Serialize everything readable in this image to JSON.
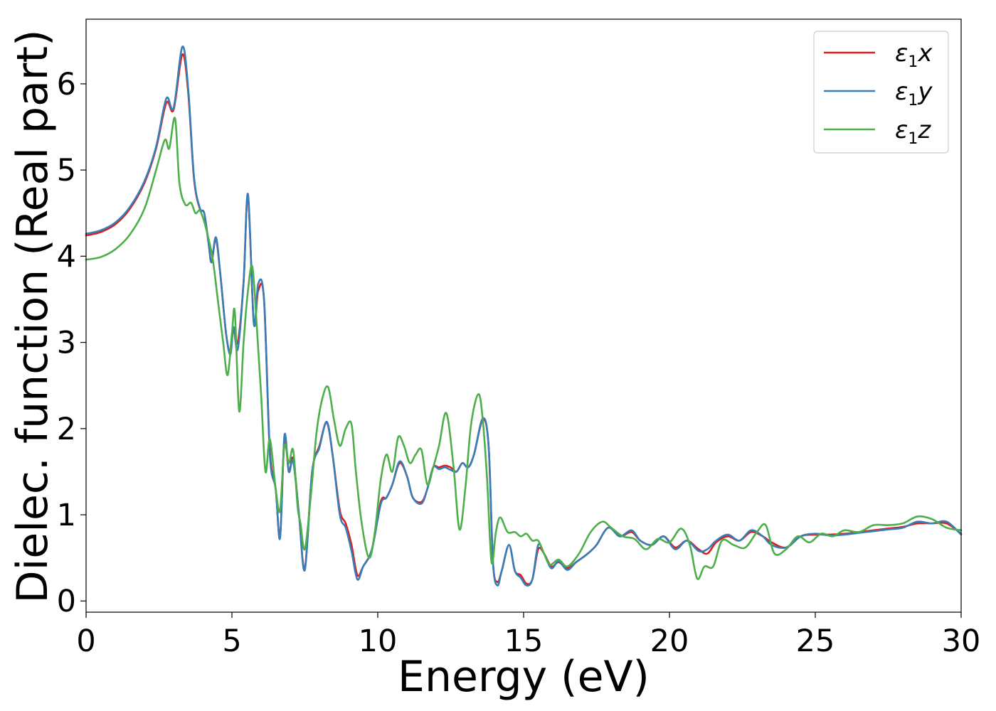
{
  "chart_data": {
    "type": "line",
    "title": "",
    "xlabel": "Energy (eV)",
    "ylabel": "Dielec. function (Real part)",
    "xlim": [
      0,
      30
    ],
    "ylim": [
      -0.13,
      6.75
    ],
    "xticks": [
      0,
      5,
      10,
      15,
      20,
      25,
      30
    ],
    "yticks": [
      0,
      1,
      2,
      3,
      4,
      5,
      6
    ],
    "xtick_labels": [
      "0",
      "5",
      "10",
      "15",
      "20",
      "25",
      "30"
    ],
    "ytick_labels": [
      "0",
      "1",
      "2",
      "3",
      "4",
      "5",
      "6"
    ],
    "grid": false,
    "legend_position": "top-right",
    "series": [
      {
        "name": "ε1x",
        "label_base": "ε",
        "label_sub": "1",
        "label_var": "x",
        "color": "#e41a1c",
        "x": [
          0,
          0.5,
          1,
          1.5,
          2,
          2.4,
          2.75,
          3.0,
          3.3,
          3.5,
          3.7,
          3.9,
          4.05,
          4.2,
          4.3,
          4.45,
          4.6,
          4.8,
          4.95,
          5.05,
          5.2,
          5.4,
          5.55,
          5.75,
          5.9,
          6.1,
          6.3,
          6.5,
          6.65,
          6.8,
          6.95,
          7.1,
          7.3,
          7.5,
          7.75,
          8.0,
          8.25,
          8.45,
          8.7,
          8.9,
          9.1,
          9.3,
          9.5,
          9.8,
          10.1,
          10.3,
          10.5,
          10.75,
          11.0,
          11.2,
          11.5,
          11.7,
          11.9,
          12.1,
          12.3,
          12.5,
          12.7,
          12.9,
          13.1,
          13.3,
          13.6,
          13.8,
          13.95,
          14.1,
          14.25,
          14.5,
          14.7,
          14.9,
          15.1,
          15.3,
          15.5,
          15.7,
          15.95,
          16.2,
          16.5,
          16.8,
          17.2,
          17.5,
          17.9,
          18.3,
          18.7,
          19.0,
          19.4,
          19.8,
          20.2,
          20.6,
          21.0,
          21.3,
          21.6,
          22.0,
          22.4,
          22.8,
          23.2,
          23.5,
          24.0,
          24.5,
          25.0,
          25.5,
          26.0,
          26.5,
          27.0,
          27.5,
          28.0,
          28.5,
          29.0,
          29.5,
          30.0
        ],
        "y": [
          4.24,
          4.28,
          4.37,
          4.55,
          4.85,
          5.25,
          5.78,
          5.7,
          6.34,
          5.9,
          4.9,
          4.55,
          4.5,
          4.15,
          3.93,
          4.2,
          3.8,
          3.1,
          2.88,
          3.16,
          3.0,
          3.7,
          4.7,
          3.23,
          3.6,
          3.5,
          1.75,
          1.3,
          0.75,
          1.88,
          1.5,
          1.65,
          1.0,
          0.38,
          1.5,
          1.8,
          2.07,
          1.7,
          1.05,
          0.9,
          0.65,
          0.3,
          0.4,
          0.6,
          1.15,
          1.2,
          1.35,
          1.6,
          1.45,
          1.2,
          1.15,
          1.3,
          1.55,
          1.55,
          1.57,
          1.55,
          1.5,
          1.6,
          1.55,
          1.7,
          2.1,
          1.8,
          0.45,
          0.22,
          0.35,
          0.65,
          0.35,
          0.3,
          0.2,
          0.25,
          0.6,
          0.55,
          0.4,
          0.45,
          0.38,
          0.45,
          0.55,
          0.65,
          0.85,
          0.75,
          0.8,
          0.7,
          0.65,
          0.75,
          0.62,
          0.7,
          0.6,
          0.55,
          0.68,
          0.75,
          0.7,
          0.8,
          0.75,
          0.68,
          0.62,
          0.75,
          0.77,
          0.77,
          0.78,
          0.8,
          0.82,
          0.84,
          0.86,
          0.9,
          0.9,
          0.9,
          0.78
        ]
      },
      {
        "name": "ε1y",
        "label_base": "ε",
        "label_sub": "1",
        "label_var": "y",
        "color": "#377eb8",
        "x": [
          0,
          0.5,
          1,
          1.5,
          2,
          2.4,
          2.75,
          3.0,
          3.3,
          3.5,
          3.7,
          3.9,
          4.05,
          4.2,
          4.3,
          4.45,
          4.6,
          4.8,
          4.95,
          5.05,
          5.2,
          5.4,
          5.55,
          5.75,
          5.9,
          6.1,
          6.3,
          6.5,
          6.65,
          6.8,
          6.95,
          7.1,
          7.3,
          7.5,
          7.75,
          8.0,
          8.25,
          8.45,
          8.7,
          8.9,
          9.1,
          9.3,
          9.5,
          9.8,
          10.1,
          10.3,
          10.5,
          10.75,
          11.0,
          11.2,
          11.5,
          11.7,
          11.9,
          12.1,
          12.3,
          12.5,
          12.7,
          12.9,
          13.1,
          13.3,
          13.6,
          13.8,
          13.95,
          14.1,
          14.25,
          14.5,
          14.7,
          14.9,
          15.1,
          15.3,
          15.5,
          15.7,
          15.95,
          16.2,
          16.5,
          16.8,
          17.2,
          17.5,
          17.9,
          18.3,
          18.7,
          19.0,
          19.4,
          19.8,
          20.2,
          20.6,
          21.0,
          21.3,
          21.6,
          22.0,
          22.4,
          22.8,
          23.2,
          23.5,
          24.0,
          24.5,
          25.0,
          25.5,
          26.0,
          26.5,
          27.0,
          27.5,
          28.0,
          28.5,
          29.0,
          29.5,
          30.0
        ],
        "y": [
          4.26,
          4.3,
          4.39,
          4.57,
          4.87,
          5.27,
          5.83,
          5.72,
          6.43,
          5.95,
          4.92,
          4.56,
          4.5,
          4.15,
          3.93,
          4.22,
          3.8,
          3.1,
          2.86,
          3.18,
          2.92,
          3.7,
          4.72,
          3.22,
          3.68,
          3.5,
          1.7,
          1.3,
          0.73,
          1.92,
          1.5,
          1.62,
          1.0,
          0.36,
          1.5,
          1.78,
          2.08,
          1.7,
          1.0,
          0.85,
          0.58,
          0.25,
          0.4,
          0.6,
          1.12,
          1.2,
          1.35,
          1.62,
          1.45,
          1.2,
          1.13,
          1.3,
          1.55,
          1.53,
          1.55,
          1.52,
          1.5,
          1.6,
          1.55,
          1.7,
          2.12,
          1.8,
          0.45,
          0.18,
          0.35,
          0.65,
          0.35,
          0.27,
          0.18,
          0.25,
          0.65,
          0.55,
          0.38,
          0.46,
          0.36,
          0.45,
          0.55,
          0.65,
          0.85,
          0.75,
          0.82,
          0.7,
          0.65,
          0.75,
          0.6,
          0.7,
          0.58,
          0.6,
          0.7,
          0.77,
          0.7,
          0.82,
          0.75,
          0.65,
          0.62,
          0.75,
          0.78,
          0.76,
          0.77,
          0.79,
          0.81,
          0.83,
          0.85,
          0.92,
          0.9,
          0.92,
          0.77
        ]
      },
      {
        "name": "ε1z",
        "label_base": "ε",
        "label_sub": "1",
        "label_var": "z",
        "color": "#4daf4a",
        "x": [
          0,
          0.5,
          1,
          1.5,
          2,
          2.4,
          2.7,
          2.85,
          3.05,
          3.2,
          3.4,
          3.6,
          3.75,
          3.9,
          4.05,
          4.2,
          4.35,
          4.55,
          4.7,
          4.85,
          5.0,
          5.1,
          5.25,
          5.4,
          5.55,
          5.7,
          5.85,
          6.0,
          6.15,
          6.3,
          6.5,
          6.65,
          6.8,
          6.95,
          7.1,
          7.25,
          7.35,
          7.5,
          7.7,
          7.9,
          8.1,
          8.3,
          8.5,
          8.7,
          8.9,
          9.1,
          9.25,
          9.45,
          9.7,
          9.9,
          10.1,
          10.3,
          10.5,
          10.7,
          10.9,
          11.1,
          11.3,
          11.5,
          11.7,
          11.9,
          12.1,
          12.35,
          12.6,
          12.8,
          13.0,
          13.2,
          13.45,
          13.6,
          13.75,
          13.9,
          14.05,
          14.2,
          14.45,
          14.7,
          14.9,
          15.1,
          15.3,
          15.5,
          15.7,
          15.9,
          16.2,
          16.5,
          16.9,
          17.3,
          17.7,
          18.0,
          18.4,
          18.8,
          19.2,
          19.6,
          20.0,
          20.4,
          20.7,
          20.95,
          21.2,
          21.5,
          21.8,
          22.2,
          22.6,
          23.0,
          23.3,
          23.6,
          24.0,
          24.4,
          24.8,
          25.2,
          25.6,
          26.0,
          26.5,
          27.0,
          27.5,
          28.0,
          28.5,
          29.0,
          29.5,
          30.0
        ],
        "y": [
          3.96,
          3.99,
          4.08,
          4.25,
          4.55,
          5.0,
          5.35,
          5.25,
          5.6,
          4.85,
          4.6,
          4.62,
          4.5,
          4.53,
          4.4,
          4.2,
          3.95,
          3.4,
          3.0,
          2.62,
          3.1,
          3.35,
          2.2,
          3.0,
          3.6,
          3.88,
          3.2,
          2.4,
          1.5,
          1.88,
          1.3,
          1.05,
          1.8,
          1.6,
          1.75,
          1.1,
          0.9,
          0.6,
          1.2,
          1.95,
          2.35,
          2.48,
          2.1,
          1.8,
          2.0,
          2.05,
          1.5,
          0.9,
          0.5,
          0.8,
          1.4,
          1.7,
          1.5,
          1.9,
          1.8,
          1.6,
          1.7,
          1.75,
          1.35,
          1.55,
          1.8,
          2.18,
          1.55,
          0.83,
          1.3,
          2.05,
          2.4,
          2.1,
          1.4,
          0.45,
          0.8,
          0.97,
          0.8,
          0.8,
          0.75,
          0.78,
          0.7,
          0.7,
          0.55,
          0.42,
          0.48,
          0.4,
          0.55,
          0.8,
          0.92,
          0.85,
          0.75,
          0.72,
          0.6,
          0.72,
          0.68,
          0.84,
          0.65,
          0.26,
          0.4,
          0.4,
          0.7,
          0.65,
          0.62,
          0.8,
          0.88,
          0.55,
          0.6,
          0.75,
          0.68,
          0.78,
          0.75,
          0.82,
          0.8,
          0.88,
          0.88,
          0.9,
          0.98,
          0.95,
          0.85,
          0.82
        ]
      }
    ]
  }
}
